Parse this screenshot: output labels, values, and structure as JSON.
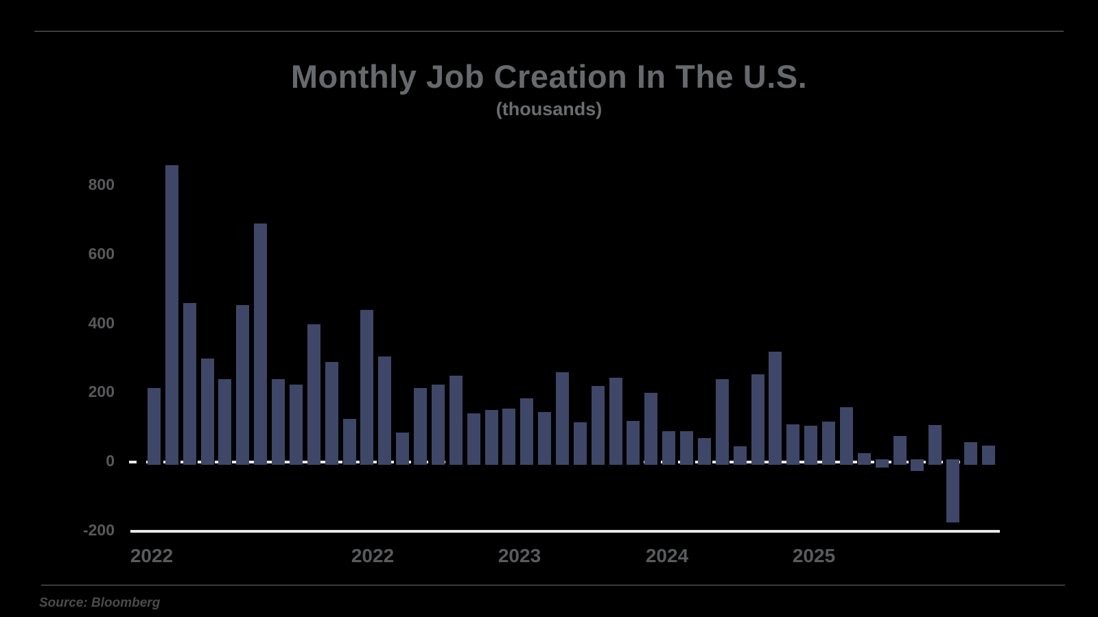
{
  "page": {
    "background": "#000000"
  },
  "header": {
    "title": "Monthly Job Creation In The U.S.",
    "subtitle": "(thousands)"
  },
  "chart_data": {
    "type": "bar",
    "title": "Monthly Job Creation In The U.S.",
    "subtitle": "(thousands)",
    "unit": "thousands of jobs",
    "values": [
      215,
      860,
      460,
      300,
      240,
      455,
      690,
      240,
      225,
      400,
      290,
      125,
      440,
      305,
      85,
      215,
      225,
      250,
      140,
      150,
      155,
      185,
      145,
      260,
      115,
      220,
      245,
      120,
      200,
      90,
      90,
      70,
      240,
      45,
      255,
      320,
      110,
      105,
      118,
      158,
      25,
      -15,
      75,
      -25,
      108,
      -175,
      58,
      48
    ],
    "bar_color": "#3f4768",
    "ylim": [
      -200,
      900
    ],
    "y_ticks": [
      {
        "label": "800",
        "value": 800
      },
      {
        "label": "600",
        "value": 600
      },
      {
        "label": "400",
        "value": 400
      },
      {
        "label": "200",
        "value": 200
      },
      {
        "label": "0",
        "value": 0
      },
      {
        "label": "-200",
        "value": -200
      }
    ],
    "x_ticks": [
      {
        "label": "2022",
        "x": 221
      },
      {
        "label": "2022",
        "x": 543
      },
      {
        "label": "2023",
        "x": 757
      },
      {
        "label": "2024",
        "x": 972
      },
      {
        "label": "2025",
        "x": 1186
      }
    ],
    "zero_line_style": "dashed-white",
    "bottom_axis_style": "solid-white",
    "grid": "off",
    "legend": "none"
  },
  "footer": {
    "source": "Source: Bloomberg"
  }
}
